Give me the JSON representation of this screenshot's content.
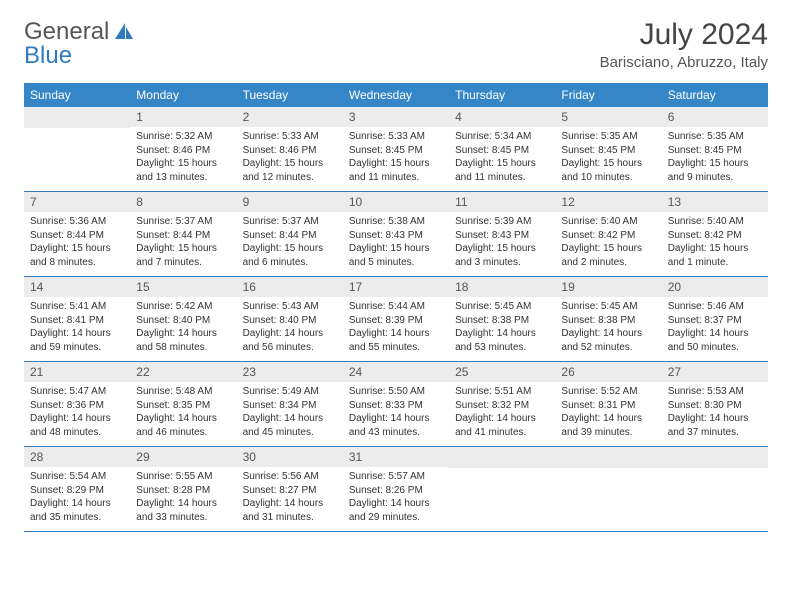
{
  "brand": {
    "part1": "General",
    "part2": "Blue"
  },
  "title": "July 2024",
  "location": "Barisciano, Abruzzo, Italy",
  "colors": {
    "header_bg": "#3486c7",
    "band_bg": "#ececec",
    "row_border": "#2f7dc0",
    "text": "#333333",
    "title_text": "#444444"
  },
  "weekdays": [
    "Sunday",
    "Monday",
    "Tuesday",
    "Wednesday",
    "Thursday",
    "Friday",
    "Saturday"
  ],
  "weeks": [
    [
      {
        "day": "",
        "sunrise": "",
        "sunset": "",
        "daylight1": "",
        "daylight2": ""
      },
      {
        "day": "1",
        "sunrise": "Sunrise: 5:32 AM",
        "sunset": "Sunset: 8:46 PM",
        "daylight1": "Daylight: 15 hours",
        "daylight2": "and 13 minutes."
      },
      {
        "day": "2",
        "sunrise": "Sunrise: 5:33 AM",
        "sunset": "Sunset: 8:46 PM",
        "daylight1": "Daylight: 15 hours",
        "daylight2": "and 12 minutes."
      },
      {
        "day": "3",
        "sunrise": "Sunrise: 5:33 AM",
        "sunset": "Sunset: 8:45 PM",
        "daylight1": "Daylight: 15 hours",
        "daylight2": "and 11 minutes."
      },
      {
        "day": "4",
        "sunrise": "Sunrise: 5:34 AM",
        "sunset": "Sunset: 8:45 PM",
        "daylight1": "Daylight: 15 hours",
        "daylight2": "and 11 minutes."
      },
      {
        "day": "5",
        "sunrise": "Sunrise: 5:35 AM",
        "sunset": "Sunset: 8:45 PM",
        "daylight1": "Daylight: 15 hours",
        "daylight2": "and 10 minutes."
      },
      {
        "day": "6",
        "sunrise": "Sunrise: 5:35 AM",
        "sunset": "Sunset: 8:45 PM",
        "daylight1": "Daylight: 15 hours",
        "daylight2": "and 9 minutes."
      }
    ],
    [
      {
        "day": "7",
        "sunrise": "Sunrise: 5:36 AM",
        "sunset": "Sunset: 8:44 PM",
        "daylight1": "Daylight: 15 hours",
        "daylight2": "and 8 minutes."
      },
      {
        "day": "8",
        "sunrise": "Sunrise: 5:37 AM",
        "sunset": "Sunset: 8:44 PM",
        "daylight1": "Daylight: 15 hours",
        "daylight2": "and 7 minutes."
      },
      {
        "day": "9",
        "sunrise": "Sunrise: 5:37 AM",
        "sunset": "Sunset: 8:44 PM",
        "daylight1": "Daylight: 15 hours",
        "daylight2": "and 6 minutes."
      },
      {
        "day": "10",
        "sunrise": "Sunrise: 5:38 AM",
        "sunset": "Sunset: 8:43 PM",
        "daylight1": "Daylight: 15 hours",
        "daylight2": "and 5 minutes."
      },
      {
        "day": "11",
        "sunrise": "Sunrise: 5:39 AM",
        "sunset": "Sunset: 8:43 PM",
        "daylight1": "Daylight: 15 hours",
        "daylight2": "and 3 minutes."
      },
      {
        "day": "12",
        "sunrise": "Sunrise: 5:40 AM",
        "sunset": "Sunset: 8:42 PM",
        "daylight1": "Daylight: 15 hours",
        "daylight2": "and 2 minutes."
      },
      {
        "day": "13",
        "sunrise": "Sunrise: 5:40 AM",
        "sunset": "Sunset: 8:42 PM",
        "daylight1": "Daylight: 15 hours",
        "daylight2": "and 1 minute."
      }
    ],
    [
      {
        "day": "14",
        "sunrise": "Sunrise: 5:41 AM",
        "sunset": "Sunset: 8:41 PM",
        "daylight1": "Daylight: 14 hours",
        "daylight2": "and 59 minutes."
      },
      {
        "day": "15",
        "sunrise": "Sunrise: 5:42 AM",
        "sunset": "Sunset: 8:40 PM",
        "daylight1": "Daylight: 14 hours",
        "daylight2": "and 58 minutes."
      },
      {
        "day": "16",
        "sunrise": "Sunrise: 5:43 AM",
        "sunset": "Sunset: 8:40 PM",
        "daylight1": "Daylight: 14 hours",
        "daylight2": "and 56 minutes."
      },
      {
        "day": "17",
        "sunrise": "Sunrise: 5:44 AM",
        "sunset": "Sunset: 8:39 PM",
        "daylight1": "Daylight: 14 hours",
        "daylight2": "and 55 minutes."
      },
      {
        "day": "18",
        "sunrise": "Sunrise: 5:45 AM",
        "sunset": "Sunset: 8:38 PM",
        "daylight1": "Daylight: 14 hours",
        "daylight2": "and 53 minutes."
      },
      {
        "day": "19",
        "sunrise": "Sunrise: 5:45 AM",
        "sunset": "Sunset: 8:38 PM",
        "daylight1": "Daylight: 14 hours",
        "daylight2": "and 52 minutes."
      },
      {
        "day": "20",
        "sunrise": "Sunrise: 5:46 AM",
        "sunset": "Sunset: 8:37 PM",
        "daylight1": "Daylight: 14 hours",
        "daylight2": "and 50 minutes."
      }
    ],
    [
      {
        "day": "21",
        "sunrise": "Sunrise: 5:47 AM",
        "sunset": "Sunset: 8:36 PM",
        "daylight1": "Daylight: 14 hours",
        "daylight2": "and 48 minutes."
      },
      {
        "day": "22",
        "sunrise": "Sunrise: 5:48 AM",
        "sunset": "Sunset: 8:35 PM",
        "daylight1": "Daylight: 14 hours",
        "daylight2": "and 46 minutes."
      },
      {
        "day": "23",
        "sunrise": "Sunrise: 5:49 AM",
        "sunset": "Sunset: 8:34 PM",
        "daylight1": "Daylight: 14 hours",
        "daylight2": "and 45 minutes."
      },
      {
        "day": "24",
        "sunrise": "Sunrise: 5:50 AM",
        "sunset": "Sunset: 8:33 PM",
        "daylight1": "Daylight: 14 hours",
        "daylight2": "and 43 minutes."
      },
      {
        "day": "25",
        "sunrise": "Sunrise: 5:51 AM",
        "sunset": "Sunset: 8:32 PM",
        "daylight1": "Daylight: 14 hours",
        "daylight2": "and 41 minutes."
      },
      {
        "day": "26",
        "sunrise": "Sunrise: 5:52 AM",
        "sunset": "Sunset: 8:31 PM",
        "daylight1": "Daylight: 14 hours",
        "daylight2": "and 39 minutes."
      },
      {
        "day": "27",
        "sunrise": "Sunrise: 5:53 AM",
        "sunset": "Sunset: 8:30 PM",
        "daylight1": "Daylight: 14 hours",
        "daylight2": "and 37 minutes."
      }
    ],
    [
      {
        "day": "28",
        "sunrise": "Sunrise: 5:54 AM",
        "sunset": "Sunset: 8:29 PM",
        "daylight1": "Daylight: 14 hours",
        "daylight2": "and 35 minutes."
      },
      {
        "day": "29",
        "sunrise": "Sunrise: 5:55 AM",
        "sunset": "Sunset: 8:28 PM",
        "daylight1": "Daylight: 14 hours",
        "daylight2": "and 33 minutes."
      },
      {
        "day": "30",
        "sunrise": "Sunrise: 5:56 AM",
        "sunset": "Sunset: 8:27 PM",
        "daylight1": "Daylight: 14 hours",
        "daylight2": "and 31 minutes."
      },
      {
        "day": "31",
        "sunrise": "Sunrise: 5:57 AM",
        "sunset": "Sunset: 8:26 PM",
        "daylight1": "Daylight: 14 hours",
        "daylight2": "and 29 minutes."
      },
      {
        "day": "",
        "sunrise": "",
        "sunset": "",
        "daylight1": "",
        "daylight2": ""
      },
      {
        "day": "",
        "sunrise": "",
        "sunset": "",
        "daylight1": "",
        "daylight2": ""
      },
      {
        "day": "",
        "sunrise": "",
        "sunset": "",
        "daylight1": "",
        "daylight2": ""
      }
    ]
  ]
}
